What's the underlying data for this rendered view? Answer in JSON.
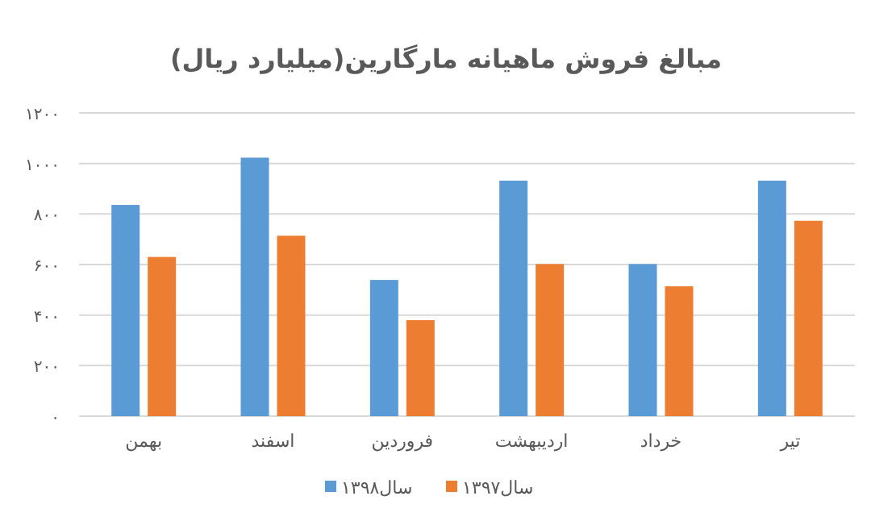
{
  "chart_data": {
    "type": "bar",
    "title": "مبالغ فروش ماهیانه مارگارین(میلیارد ریال)",
    "categories": [
      "بهمن",
      "اسفند",
      "فروردین",
      "اردیبهشت",
      "خرداد",
      "تیر"
    ],
    "series": [
      {
        "name": "سال۱۳۹۸",
        "color": "#5b9bd5",
        "values": [
          836,
          1023,
          539,
          932,
          602,
          932
        ]
      },
      {
        "name": "سال۱۳۹۷",
        "color": "#ed7d31",
        "values": [
          630,
          714,
          380,
          602,
          514,
          773
        ]
      }
    ],
    "ylim": [
      0,
      1200
    ],
    "yticks": [
      {
        "value": 0,
        "label": "۰"
      },
      {
        "value": 200,
        "label": "۲۰۰"
      },
      {
        "value": 400,
        "label": "۴۰۰"
      },
      {
        "value": 600,
        "label": "۶۰۰"
      },
      {
        "value": 800,
        "label": "۸۰۰"
      },
      {
        "value": 1000,
        "label": "۱۰۰۰"
      },
      {
        "value": 1200,
        "label": "۱۲۰۰"
      }
    ],
    "grid": "y",
    "legend": "bottom"
  }
}
